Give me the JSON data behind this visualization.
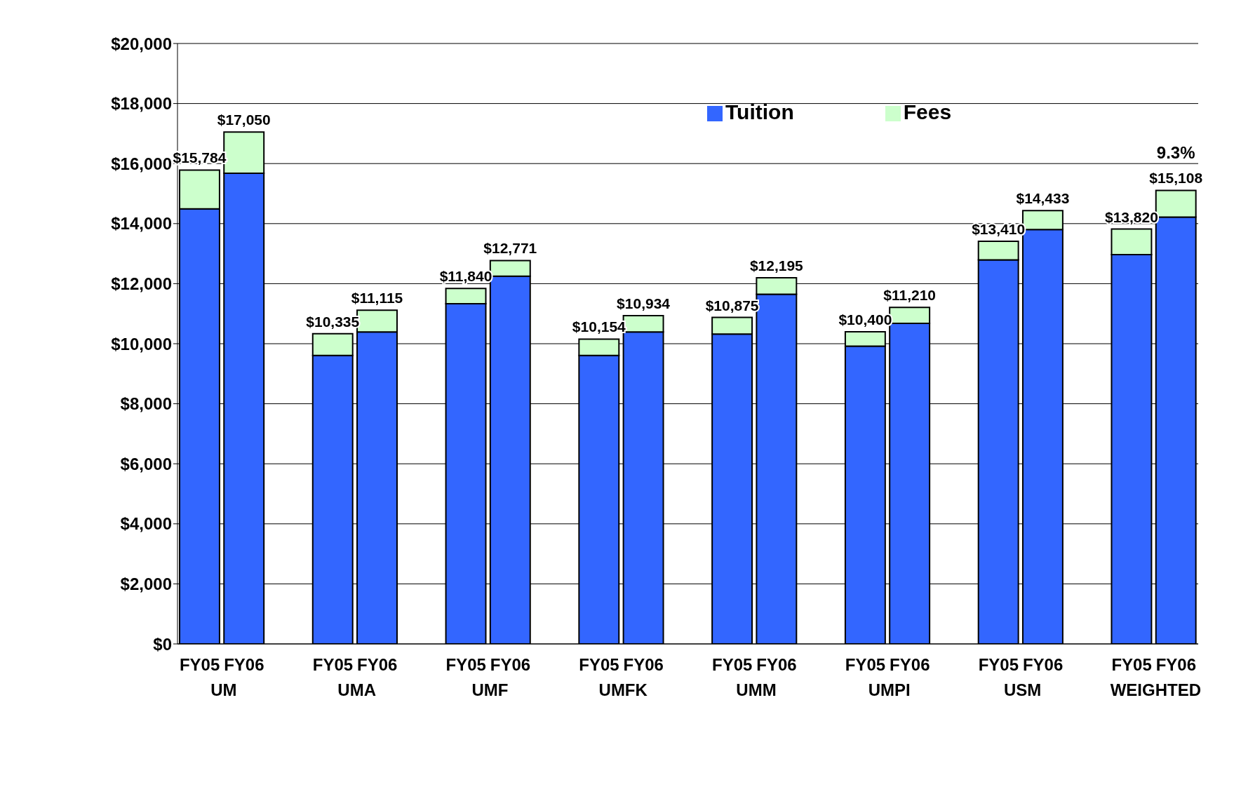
{
  "chart_data": {
    "type": "bar",
    "stacked": true,
    "categories": [
      "FY05",
      "FY06",
      "FY05",
      "FY06",
      "FY05",
      "FY06",
      "FY05",
      "FY06",
      "FY05",
      "FY06",
      "FY05",
      "FY06",
      "FY05",
      "FY06",
      "FY05",
      "FY06"
    ],
    "series": [
      {
        "name": "Tuition",
        "color": "#3366ff",
        "values": [
          14490,
          15680,
          9610,
          10390,
          11330,
          12250,
          9610,
          10390,
          10320,
          11650,
          9920,
          10680,
          12790,
          13800,
          12970,
          14220
        ]
      },
      {
        "name": "Fees",
        "color": "#ccffcc",
        "values": [
          1294,
          1370,
          725,
          725,
          510,
          521,
          544,
          544,
          555,
          545,
          480,
          530,
          620,
          633,
          850,
          888
        ]
      }
    ],
    "totals": [
      "$15,784",
      "$17,050",
      "$10,335",
      "$11,115",
      "$11,840",
      "$12,771",
      "$10,154",
      "$10,934",
      "$10,875",
      "$12,195",
      "$10,400",
      "$11,210",
      "$13,410",
      "$14,433",
      "$13,820",
      "$15,108"
    ],
    "ylim": [
      0,
      20000
    ],
    "yticks": [
      {
        "value": 0,
        "label": "$0"
      },
      {
        "value": 2000,
        "label": "$2,000"
      },
      {
        "value": 4000,
        "label": "$4,000"
      },
      {
        "value": 6000,
        "label": "$6,000"
      },
      {
        "value": 8000,
        "label": "$8,000"
      },
      {
        "value": 10000,
        "label": "$10,000"
      },
      {
        "value": 12000,
        "label": "$12,000"
      },
      {
        "value": 14000,
        "label": "$14,000"
      },
      {
        "value": 16000,
        "label": "$16,000"
      },
      {
        "value": 18000,
        "label": "$18,000"
      },
      {
        "value": 20000,
        "label": "$20,000"
      }
    ],
    "grid": "y",
    "legend": "top right",
    "annotations": [
      "UM",
      "UMA",
      "UMF",
      "UMFK",
      "UMM",
      "UMPI",
      "USM",
      "WEIGHTED",
      "9.3%"
    ]
  }
}
